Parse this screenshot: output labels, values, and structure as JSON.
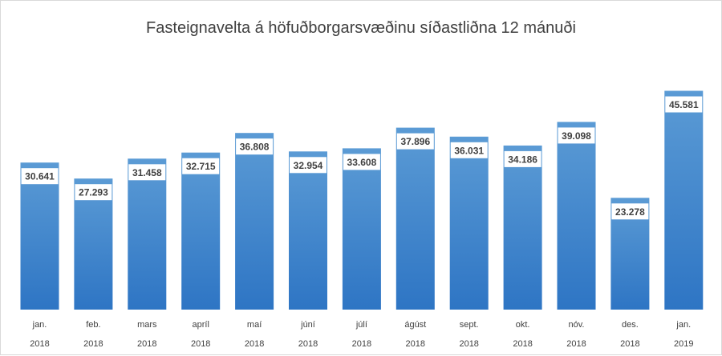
{
  "chart_data": {
    "type": "bar",
    "title": "Fasteignavelta á höfuðborgarsvæðinu síðastliðna 12 mánuði",
    "categories": [
      {
        "month": "jan.",
        "year": "2018"
      },
      {
        "month": "feb.",
        "year": "2018"
      },
      {
        "month": "mars",
        "year": "2018"
      },
      {
        "month": "apríl",
        "year": "2018"
      },
      {
        "month": "maí",
        "year": "2018"
      },
      {
        "month": "júní",
        "year": "2018"
      },
      {
        "month": "júlí",
        "year": "2018"
      },
      {
        "month": "ágúst",
        "year": "2018"
      },
      {
        "month": "sept.",
        "year": "2018"
      },
      {
        "month": "okt.",
        "year": "2018"
      },
      {
        "month": "nóv.",
        "year": "2018"
      },
      {
        "month": "des.",
        "year": "2018"
      },
      {
        "month": "jan.",
        "year": "2019"
      }
    ],
    "values": [
      30641,
      27293,
      31458,
      32715,
      36808,
      32954,
      33608,
      37896,
      36031,
      34186,
      39098,
      23278,
      45581
    ],
    "value_labels": [
      "30.641",
      "27.293",
      "31.458",
      "32.715",
      "36.808",
      "32.954",
      "33.608",
      "37.896",
      "36.031",
      "34.186",
      "39.098",
      "23.278",
      "45.581"
    ],
    "ylim": [
      0,
      50000
    ],
    "grid": false,
    "legend": "none",
    "colors": {
      "bar_top": "#5b9bd5",
      "bar_bottom": "#2e75c4",
      "label_box": "#ffffff",
      "label_text": "#404040",
      "axis_text": "#404040",
      "title_text": "#404040"
    }
  }
}
